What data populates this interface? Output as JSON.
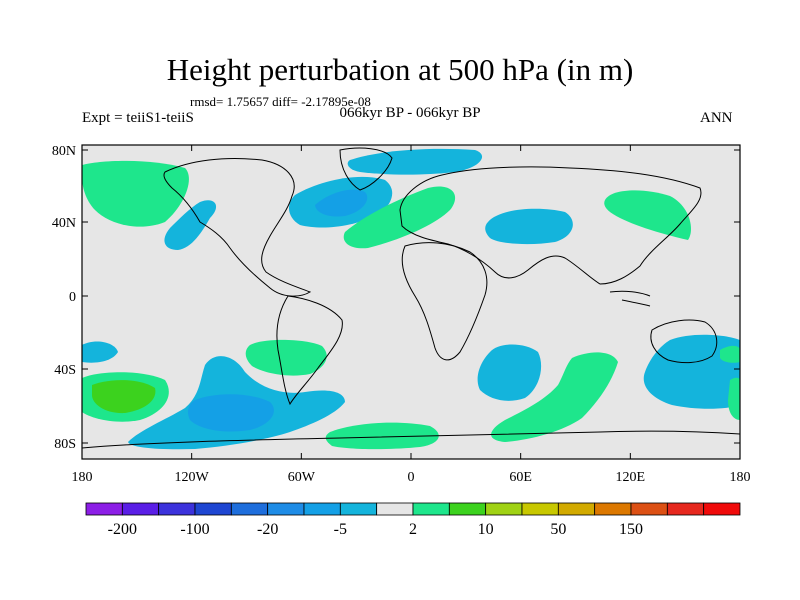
{
  "title": "Height perturbation at 500 hPa (in m)",
  "stats": "rmsd= 1.75657 diff= -2.17895e-08",
  "experiment": "Expt = teiiS1-teiiS",
  "period": "066kyr BP - 066kyr BP",
  "season": "ANN",
  "lat_labels": [
    "80N",
    "40N",
    "0",
    "40S",
    "80S"
  ],
  "lon_labels": [
    "180",
    "120W",
    "60W",
    "0",
    "60E",
    "120E",
    "180"
  ],
  "colorbar": {
    "colors": [
      "#8c1ee6",
      "#5a1ee6",
      "#3c32dc",
      "#1e46d2",
      "#1e6edc",
      "#1e8ce6",
      "#14a0e6",
      "#14b4dc",
      "#e6e6e6",
      "#1ee68c",
      "#3cd21e",
      "#a0d214",
      "#c8c800",
      "#d2aa00",
      "#dc7800",
      "#dc5014",
      "#e6281e",
      "#f00a0a"
    ],
    "labels": [
      "-200",
      "-100",
      "-20",
      "-5",
      "2",
      "10",
      "50",
      "150"
    ]
  },
  "colors": {
    "background": "#e6e6e6",
    "negative_light": "#14b4dc",
    "negative_medium": "#14a0e6",
    "positive_light": "#1ee68c",
    "positive_medium": "#3cd21e"
  }
}
